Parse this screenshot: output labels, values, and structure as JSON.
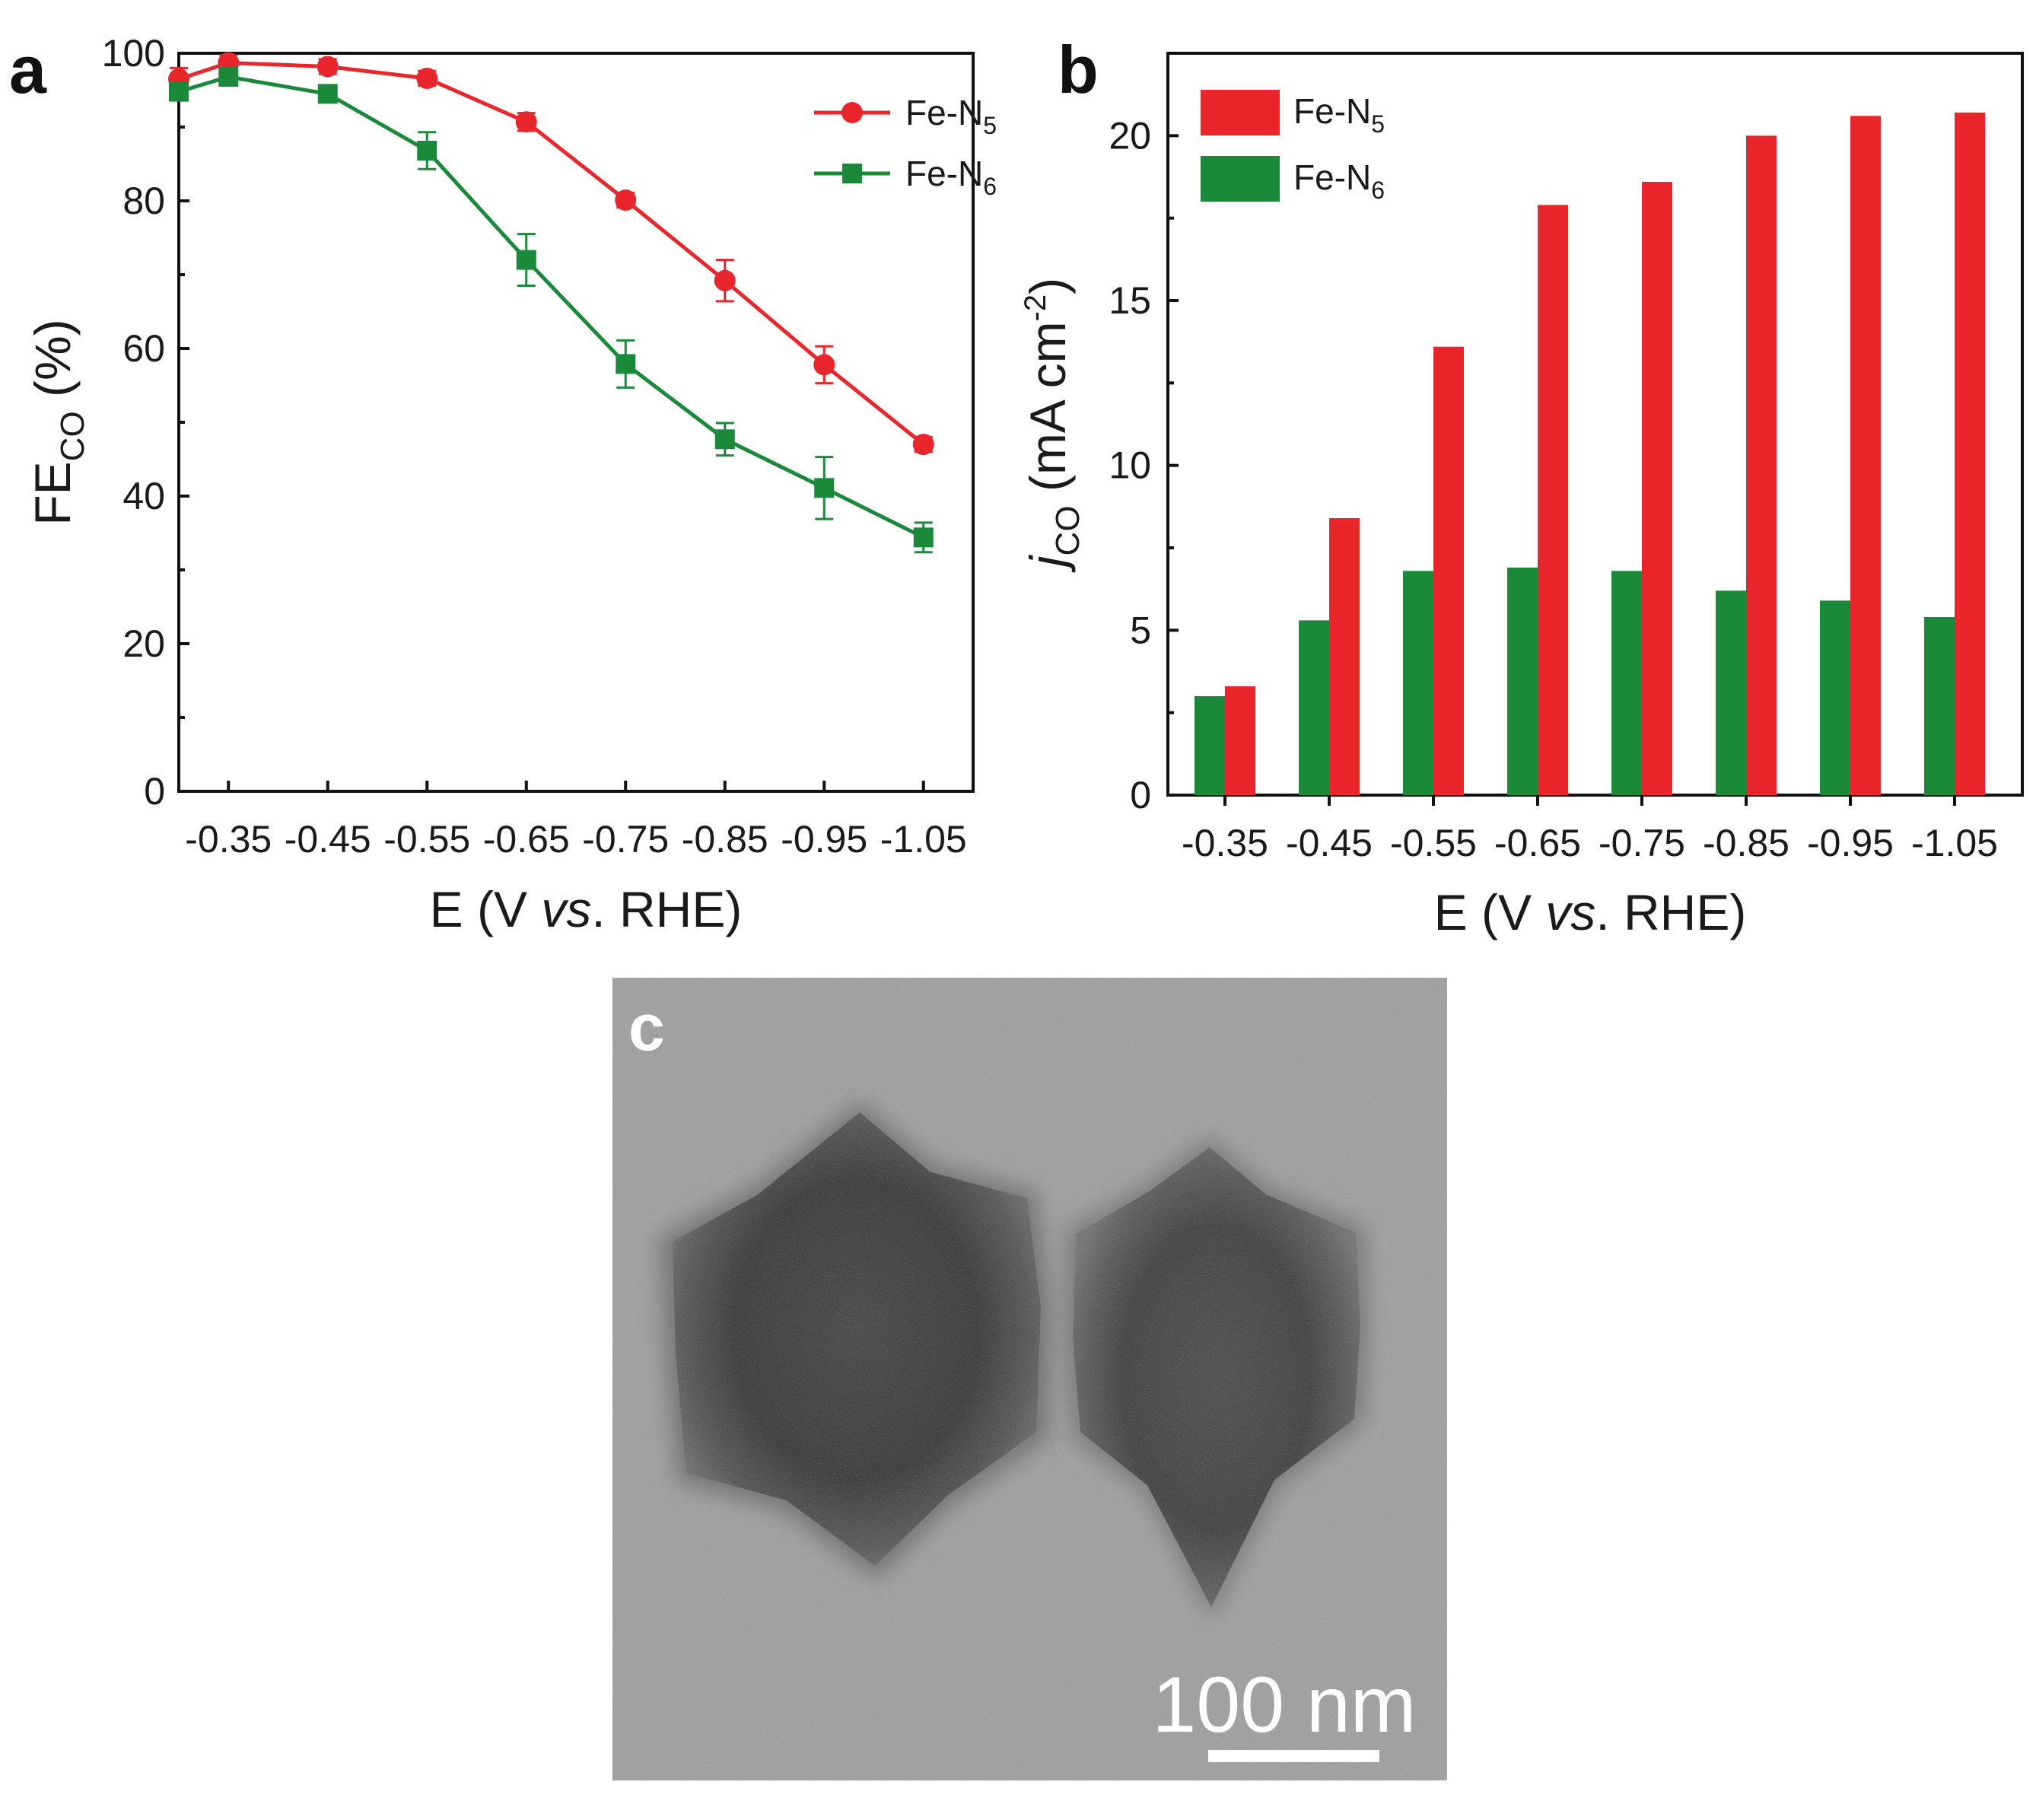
{
  "colors": {
    "fe_n5": "#e8262b",
    "fe_n6": "#1a8a3a",
    "axis": "#111111",
    "tem_bg": "#9c9c9c",
    "scale_bar": "#ffffff"
  },
  "chart_data": [
    {
      "panel": "a",
      "type": "line",
      "categories": [
        "-0.35",
        "-0.45",
        "-0.55",
        "-0.65",
        "-0.75",
        "-0.85",
        "-0.95",
        "-1.05"
      ],
      "x": [
        -0.3,
        -0.35,
        -0.45,
        -0.55,
        -0.65,
        -0.75,
        -0.85,
        -0.95,
        -1.05
      ],
      "series": [
        {
          "name": "Fe-N5",
          "name_main": "Fe-N",
          "name_sub": "5",
          "marker": "circle",
          "values": [
            96.5,
            98.7,
            98.2,
            96.6,
            90.7,
            80.1,
            69.2,
            57.8,
            47.0
          ],
          "errors": [
            1.5,
            1.0,
            1.0,
            1.0,
            1.2,
            1.0,
            2.8,
            2.5,
            1.0
          ]
        },
        {
          "name": "Fe-N6",
          "name_main": "Fe-N",
          "name_sub": "6",
          "marker": "square",
          "values": [
            94.8,
            96.8,
            94.5,
            86.8,
            72.0,
            57.9,
            47.7,
            41.1,
            34.4
          ],
          "errors": [
            1.2,
            1.0,
            1.0,
            2.5,
            3.5,
            3.2,
            2.2,
            4.2,
            2.0
          ]
        }
      ],
      "xlabel_pre": "E (V ",
      "xlabel_ital": "vs",
      "xlabel_post": ". RHE)",
      "ylabel_main": "FE",
      "ylabel_sub": "CO",
      "ylabel_post": " (%)",
      "xlim": [
        -0.3,
        -1.1
      ],
      "ylim": [
        0,
        100
      ],
      "yticks": [
        "0",
        "20",
        "40",
        "60",
        "80",
        "100"
      ],
      "legend": "top-right"
    },
    {
      "panel": "b",
      "type": "bar",
      "categories": [
        "-0.35",
        "-0.45",
        "-0.55",
        "-0.65",
        "-0.75",
        "-0.85",
        "-0.95",
        "-1.05"
      ],
      "series": [
        {
          "name": "Fe-N5",
          "name_main": "Fe-N",
          "name_sub": "5",
          "values": [
            3.3,
            8.4,
            13.6,
            17.9,
            18.6,
            20.0,
            20.6,
            20.7
          ]
        },
        {
          "name": "Fe-N6",
          "name_main": "Fe-N",
          "name_sub": "6",
          "values": [
            3.0,
            5.3,
            6.8,
            6.9,
            6.8,
            6.2,
            5.9,
            5.4
          ]
        }
      ],
      "xlabel_pre": "E (V ",
      "xlabel_ital": "vs",
      "xlabel_post": ". RHE)",
      "ylabel_ital": "j",
      "ylabel_sub": "CO",
      "ylabel_post": " (mA cm",
      "ylabel_sup": "-2",
      "ylabel_end": ")",
      "ylim": [
        0,
        22.5
      ],
      "yticks": [
        "0",
        "5",
        "10",
        "15",
        "20"
      ],
      "legend": "top-left"
    }
  ],
  "panel_c": {
    "label": "c",
    "scale_bar_text": "100 nm"
  }
}
